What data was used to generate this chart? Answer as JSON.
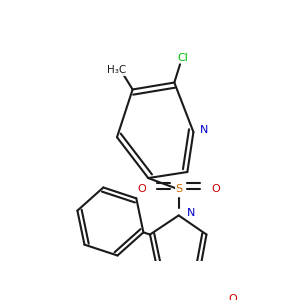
{
  "bg_color": "#ffffff",
  "bond_color": "#1a1a1a",
  "cl_color": "#00bb00",
  "n_color": "#0000cc",
  "o_color": "#cc0000",
  "s_color": "#cc6600",
  "lw": 1.5,
  "fs": 8.0,
  "figsize": [
    3.0,
    3.0
  ],
  "dpi": 100,
  "xlim": [
    0,
    300
  ],
  "ylim": [
    0,
    300
  ]
}
